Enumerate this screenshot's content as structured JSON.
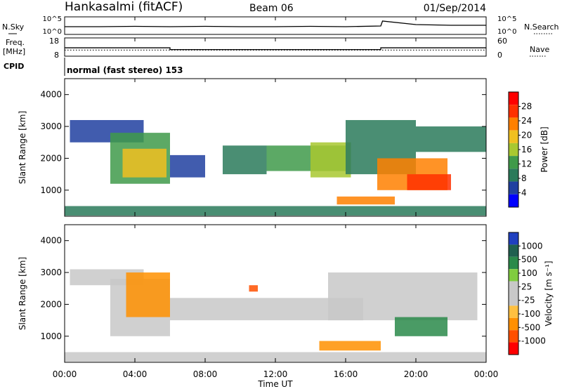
{
  "header": {
    "station": "Hankasalmi (fitACF)",
    "beam": "Beam 06",
    "date": "01/Sep/2014"
  },
  "top_panels": {
    "nsky_label": "N.Sky",
    "nsearch_label": "N.Search",
    "noise_ticks": [
      "10^5",
      "10^0"
    ],
    "noise_ticks_right": [
      "10^5",
      "10^0"
    ],
    "freq_label": "Freq.",
    "freq_unit": "[MHz]",
    "freq_ticks": [
      "18",
      "8"
    ],
    "nave_ticks": [
      "60",
      "0"
    ],
    "nave_label": "Nave",
    "cpid_label": "CPID",
    "cpid_text": "normal (fast stereo) 153"
  },
  "colors": {
    "power_scale": [
      "#0000ff",
      "#2040a0",
      "#2a7a5a",
      "#3f9a4a",
      "#a8c830",
      "#f0c020",
      "#ff8000",
      "#ff3000",
      "#ff0000"
    ],
    "velocity_scale": [
      "#ff0000",
      "#ff5000",
      "#ff9000",
      "#ffc040",
      "#c8c8c8",
      "#c8c8c8",
      "#80cc40",
      "#2a8a4a",
      "#206050",
      "#2040c0"
    ]
  },
  "power_colorbar": {
    "label": "Power [dB]",
    "ticks": [
      "28",
      "24",
      "20",
      "16",
      "12",
      "8",
      "4"
    ]
  },
  "velocity_colorbar": {
    "label": "Velocity [m s⁻¹]",
    "ticks": [
      "1000",
      "500",
      "100",
      "25",
      "-25",
      "-100",
      "-500",
      "-1000"
    ]
  },
  "chart_data": [
    {
      "type": "line",
      "title": "N.Sky / N.Search",
      "x_range": [
        0,
        24
      ],
      "series": [
        {
          "name": "N.Sky",
          "x": [
            0,
            2,
            4,
            6,
            8,
            10,
            12,
            14,
            16,
            18,
            18.1,
            20,
            22,
            24
          ],
          "values": [
            2.2,
            2.2,
            2.3,
            2.2,
            2.3,
            2.2,
            2.2,
            2.3,
            2.2,
            2.4,
            3.8,
            2.8,
            2.6,
            2.6
          ]
        }
      ]
    },
    {
      "type": "line",
      "title": "Freq. / Nave",
      "x_range": [
        0,
        24
      ],
      "series": [
        {
          "name": "Freq.",
          "x": [
            0,
            6,
            6,
            18,
            18,
            24
          ],
          "values": [
            12.6,
            12.6,
            11.6,
            11.6,
            12.6,
            12.6
          ]
        },
        {
          "name": "Nave",
          "x": [
            0,
            24
          ],
          "values": [
            20,
            20
          ]
        }
      ]
    },
    {
      "type": "heatmap",
      "title": "Power",
      "xlabel": "",
      "ylabel": "Slant Range [km]",
      "x_range": [
        0,
        24
      ],
      "ylim": [
        180,
        4500
      ],
      "y_ticks": [
        1000,
        2000,
        3000,
        4000
      ],
      "colorbar": "Power [dB]",
      "regions": [
        {
          "x": [
            0.3,
            4.5
          ],
          "y": [
            2500,
            3200
          ],
          "value": 6
        },
        {
          "x": [
            2.6,
            6.0
          ],
          "y": [
            1200,
            2800
          ],
          "value": 12
        },
        {
          "x": [
            3.3,
            5.8
          ],
          "y": [
            1400,
            2300
          ],
          "value": 20
        },
        {
          "x": [
            6.0,
            8.0
          ],
          "y": [
            1400,
            2100
          ],
          "value": 6
        },
        {
          "x": [
            9.0,
            11.5
          ],
          "y": [
            1500,
            2400
          ],
          "value": 10
        },
        {
          "x": [
            11.5,
            16.0
          ],
          "y": [
            1600,
            2400
          ],
          "value": 12
        },
        {
          "x": [
            14.0,
            16.3
          ],
          "y": [
            1400,
            2500
          ],
          "value": 16
        },
        {
          "x": [
            16.0,
            20.0
          ],
          "y": [
            1500,
            3200
          ],
          "value": 8
        },
        {
          "x": [
            20.0,
            24.0
          ],
          "y": [
            2200,
            3000
          ],
          "value": 8
        },
        {
          "x": [
            17.8,
            21.8
          ],
          "y": [
            1000,
            2000
          ],
          "value": 22
        },
        {
          "x": [
            19.5,
            22.0
          ],
          "y": [
            1000,
            1500
          ],
          "value": 28
        },
        {
          "x": [
            15.5,
            18.8
          ],
          "y": [
            550,
            800
          ],
          "value": 22
        },
        {
          "x": [
            0.0,
            24.0
          ],
          "y": [
            200,
            500
          ],
          "value": 8
        }
      ]
    },
    {
      "type": "heatmap",
      "title": "Velocity",
      "xlabel": "Time UT",
      "ylabel": "Slant Range [km]",
      "x_range": [
        0,
        24
      ],
      "x_ticks": [
        "00:00",
        "04:00",
        "08:00",
        "12:00",
        "16:00",
        "20:00",
        "00:00"
      ],
      "ylim": [
        180,
        4500
      ],
      "y_ticks": [
        1000,
        2000,
        3000,
        4000
      ],
      "colorbar": "Velocity [m s⁻¹]",
      "regions": [
        {
          "x": [
            0.3,
            4.5
          ],
          "y": [
            2600,
            3100
          ],
          "value": 0
        },
        {
          "x": [
            2.6,
            6.0
          ],
          "y": [
            1000,
            2800
          ],
          "value": 0
        },
        {
          "x": [
            3.5,
            6.0
          ],
          "y": [
            1600,
            3000
          ],
          "value": -300
        },
        {
          "x": [
            6.0,
            17.0
          ],
          "y": [
            1500,
            2200
          ],
          "value": 0
        },
        {
          "x": [
            10.5,
            11.0
          ],
          "y": [
            2400,
            2600
          ],
          "value": -500
        },
        {
          "x": [
            15.0,
            23.5
          ],
          "y": [
            1500,
            3000
          ],
          "value": 0
        },
        {
          "x": [
            18.8,
            21.8
          ],
          "y": [
            1000,
            1600
          ],
          "value": 200
        },
        {
          "x": [
            14.5,
            18.0
          ],
          "y": [
            550,
            850
          ],
          "value": -200
        },
        {
          "x": [
            0.0,
            24.0
          ],
          "y": [
            200,
            500
          ],
          "value": 0
        }
      ]
    }
  ],
  "xaxis": {
    "ticks": [
      "00:00",
      "04:00",
      "08:00",
      "12:00",
      "16:00",
      "20:00",
      "00:00"
    ],
    "label": "Time UT"
  }
}
